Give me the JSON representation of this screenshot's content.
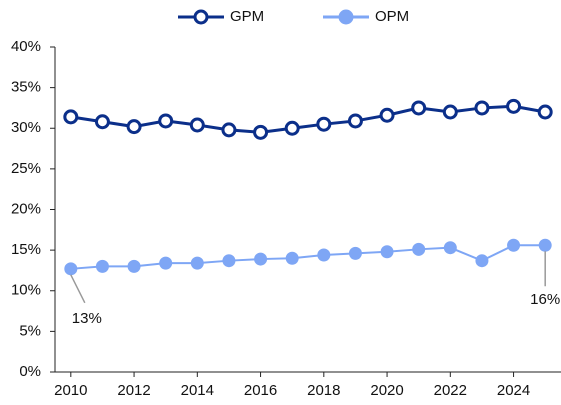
{
  "chart_data": {
    "type": "line",
    "x": [
      2010,
      2011,
      2012,
      2013,
      2014,
      2015,
      2016,
      2017,
      2018,
      2019,
      2020,
      2021,
      2022,
      2023,
      2024,
      2025
    ],
    "xlim": [
      2009.5,
      2025.5
    ],
    "xticks": [
      2010,
      2012,
      2014,
      2016,
      2018,
      2020,
      2022,
      2024
    ],
    "ylim": [
      0,
      40
    ],
    "yticks": [
      {
        "value": 0,
        "label": "0%"
      },
      {
        "value": 5,
        "label": "5%"
      },
      {
        "value": 10,
        "label": "10%"
      },
      {
        "value": 15,
        "label": "15%"
      },
      {
        "value": 20,
        "label": "20%"
      },
      {
        "value": 25,
        "label": "25%"
      },
      {
        "value": 30,
        "label": "30%"
      },
      {
        "value": 35,
        "label": "35%"
      },
      {
        "value": 40,
        "label": "40%"
      }
    ],
    "grid": false,
    "legend": "top",
    "series": [
      {
        "name": "GPM",
        "color": "#0b2f8a",
        "marker": "hollow",
        "values": [
          31.4,
          30.8,
          30.2,
          30.9,
          30.4,
          29.8,
          29.5,
          30.0,
          30.5,
          30.9,
          31.6,
          32.5,
          32.0,
          32.5,
          32.7,
          32.0
        ]
      },
      {
        "name": "OPM",
        "color": "#7ea6f5",
        "marker": "filled",
        "values": [
          12.7,
          13.0,
          13.0,
          13.4,
          13.4,
          13.7,
          13.9,
          14.0,
          14.4,
          14.6,
          14.8,
          15.1,
          15.3,
          13.7,
          15.6,
          15.6
        ],
        "value_labels": [
          "13%",
          null,
          null,
          null,
          null,
          null,
          null,
          null,
          null,
          null,
          null,
          null,
          null,
          null,
          null,
          "16%"
        ]
      }
    ]
  }
}
